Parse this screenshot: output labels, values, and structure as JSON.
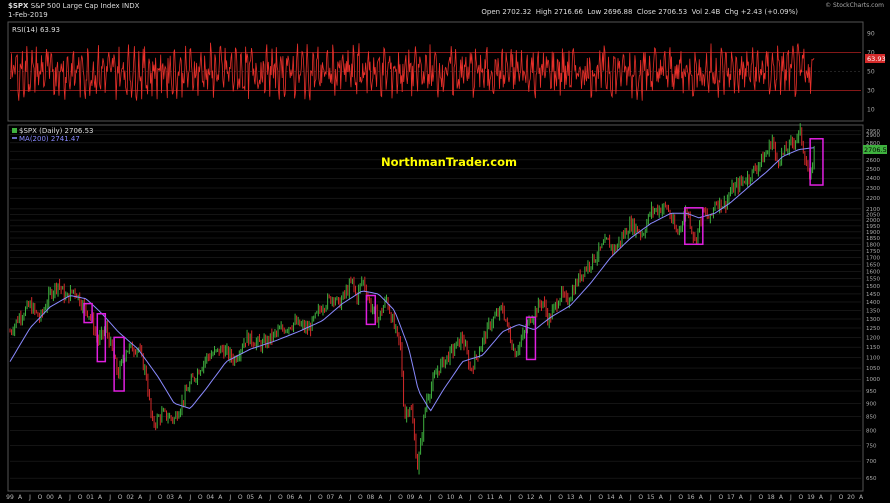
{
  "header": {
    "symbol": "$SPX",
    "name": "S&P 500 Large Cap Index",
    "exchange": "INDX",
    "date": "1-Feb-2019",
    "open_label": "Open",
    "open": "2702.32",
    "high_label": "High",
    "high": "2716.66",
    "low_label": "Low",
    "low": "2696.88",
    "close_label": "Close",
    "close": "2706.53",
    "vol_label": "Vol",
    "vol": "2.4B",
    "chg_label": "Chg",
    "chg": "+2.43 (+0.09%)",
    "credit": "© StockCharts.com"
  },
  "watermark": "NorthmanTrader.com",
  "colors": {
    "background": "#000000",
    "rsi_line": "#e8302a",
    "rsi_bands": "#b02020",
    "price_up": "#3fb13f",
    "price_down": "#d42a2a",
    "ma_line": "#8a8aff",
    "highlight_box": "#e020e0",
    "watermark": "#ffff00",
    "grid": "#2a2a2a"
  },
  "chart_data": [
    {
      "type": "line",
      "title": "RSI(14) 63.93",
      "indicator": "RSI(14)",
      "current_value": 63.93,
      "current_label": "63.93",
      "ylim": [
        0,
        100
      ],
      "yticks": [
        "90",
        "70",
        "50",
        "30",
        "10"
      ],
      "bands": [
        70,
        30
      ],
      "x_range": [
        "1999-01",
        "2019-02"
      ],
      "note_series": "oscillates mostly between about 20 and 85 across the full period"
    },
    {
      "type": "line",
      "title": "$SPX (Daily) 2706.53",
      "legend": [
        {
          "name": "$SPX (Daily) 2706.53",
          "color": "#3fb13f"
        },
        {
          "name": "MA(200) 2741.47",
          "color": "#8a8aff"
        }
      ],
      "price_label": "2706.53",
      "scale": "log",
      "ylim": [
        620,
        3000
      ],
      "yticks": [
        "2950",
        "2900",
        "2800",
        "2700",
        "2600",
        "2500",
        "2400",
        "2300",
        "2200",
        "2100",
        "2050",
        "2000",
        "1950",
        "1900",
        "1850",
        "1800",
        "1750",
        "1700",
        "1650",
        "1600",
        "1550",
        "1500",
        "1450",
        "1400",
        "1350",
        "1300",
        "1250",
        "1200",
        "1150",
        "1100",
        "1050",
        "1000",
        "950",
        "900",
        "850",
        "800",
        "750",
        "700",
        "650"
      ],
      "xticks": [
        "99",
        "A",
        "J",
        "O",
        "00",
        "A",
        "J",
        "O",
        "01",
        "A",
        "J",
        "O",
        "02",
        "A",
        "J",
        "O",
        "03",
        "A",
        "J",
        "O",
        "04",
        "A",
        "J",
        "O",
        "05",
        "A",
        "J",
        "O",
        "06",
        "A",
        "J",
        "O",
        "07",
        "A",
        "J",
        "O",
        "08",
        "A",
        "J",
        "O",
        "09",
        "A",
        "J",
        "O",
        "10",
        "A",
        "J",
        "O",
        "11",
        "A",
        "J",
        "O",
        "12",
        "A",
        "J",
        "O",
        "13",
        "A",
        "J",
        "O",
        "14",
        "A",
        "J",
        "O",
        "15",
        "A",
        "J",
        "O",
        "16",
        "A",
        "J",
        "O",
        "17",
        "A",
        "J",
        "O",
        "18",
        "A",
        "J",
        "O",
        "19",
        "A",
        "J",
        "O",
        "20",
        "A"
      ],
      "x_start": 1999.0,
      "x_end": 2020.25,
      "series": [
        {
          "name": "$SPX (Daily)",
          "points": [
            [
              1999.0,
              1230
            ],
            [
              1999.25,
              1320
            ],
            [
              1999.5,
              1380
            ],
            [
              1999.75,
              1300
            ],
            [
              2000.0,
              1450
            ],
            [
              2000.2,
              1520
            ],
            [
              2000.4,
              1420
            ],
            [
              2000.6,
              1480
            ],
            [
              2000.8,
              1390
            ],
            [
              2001.0,
              1320
            ],
            [
              2001.2,
              1180
            ],
            [
              2001.4,
              1250
            ],
            [
              2001.7,
              1020
            ],
            [
              2001.9,
              1140
            ],
            [
              2002.2,
              1150
            ],
            [
              2002.4,
              1020
            ],
            [
              2002.55,
              820
            ],
            [
              2002.8,
              860
            ],
            [
              2003.1,
              840
            ],
            [
              2003.5,
              980
            ],
            [
              2003.9,
              1100
            ],
            [
              2004.3,
              1140
            ],
            [
              2004.6,
              1090
            ],
            [
              2004.9,
              1200
            ],
            [
              2005.3,
              1160
            ],
            [
              2005.7,
              1230
            ],
            [
              2006.1,
              1280
            ],
            [
              2006.45,
              1240
            ],
            [
              2006.8,
              1380
            ],
            [
              2007.1,
              1440
            ],
            [
              2007.2,
              1380
            ],
            [
              2007.55,
              1530
            ],
            [
              2007.65,
              1420
            ],
            [
              2007.8,
              1550
            ],
            [
              2008.0,
              1380
            ],
            [
              2008.2,
              1300
            ],
            [
              2008.4,
              1420
            ],
            [
              2008.6,
              1250
            ],
            [
              2008.75,
              1150
            ],
            [
              2008.85,
              850
            ],
            [
              2009.0,
              900
            ],
            [
              2009.18,
              680
            ],
            [
              2009.4,
              920
            ],
            [
              2009.7,
              1050
            ],
            [
              2010.0,
              1120
            ],
            [
              2010.3,
              1200
            ],
            [
              2010.5,
              1040
            ],
            [
              2010.8,
              1180
            ],
            [
              2011.0,
              1280
            ],
            [
              2011.3,
              1360
            ],
            [
              2011.6,
              1120
            ],
            [
              2011.8,
              1200
            ],
            [
              2012.0,
              1310
            ],
            [
              2012.3,
              1410
            ],
            [
              2012.45,
              1290
            ],
            [
              2012.75,
              1450
            ],
            [
              2012.9,
              1400
            ],
            [
              2013.3,
              1600
            ],
            [
              2013.6,
              1700
            ],
            [
              2013.9,
              1820
            ],
            [
              2014.1,
              1760
            ],
            [
              2014.5,
              1970
            ],
            [
              2014.8,
              1880
            ],
            [
              2015.0,
              2080
            ],
            [
              2015.4,
              2120
            ],
            [
              2015.65,
              1880
            ],
            [
              2015.9,
              2100
            ],
            [
              2016.1,
              1830
            ],
            [
              2016.3,
              2070
            ],
            [
              2016.5,
              2000
            ],
            [
              2016.6,
              2170
            ],
            [
              2016.85,
              2140
            ],
            [
              2017.0,
              2270
            ],
            [
              2017.5,
              2440
            ],
            [
              2017.9,
              2680
            ],
            [
              2018.05,
              2870
            ],
            [
              2018.12,
              2580
            ],
            [
              2018.4,
              2720
            ],
            [
              2018.73,
              2930
            ],
            [
              2018.98,
              2350
            ],
            [
              2019.08,
              2706.53
            ]
          ]
        },
        {
          "name": "MA(200)",
          "points": [
            [
              1999.0,
              1080
            ],
            [
              1999.5,
              1250
            ],
            [
              2000.0,
              1370
            ],
            [
              2000.5,
              1440
            ],
            [
              2000.9,
              1420
            ],
            [
              2001.3,
              1330
            ],
            [
              2001.7,
              1230
            ],
            [
              2002.2,
              1140
            ],
            [
              2002.7,
              1010
            ],
            [
              2003.1,
              900
            ],
            [
              2003.5,
              880
            ],
            [
              2003.9,
              960
            ],
            [
              2004.4,
              1080
            ],
            [
              2005.0,
              1140
            ],
            [
              2005.6,
              1180
            ],
            [
              2006.2,
              1230
            ],
            [
              2006.8,
              1290
            ],
            [
              2007.3,
              1390
            ],
            [
              2007.8,
              1470
            ],
            [
              2008.2,
              1450
            ],
            [
              2008.6,
              1350
            ],
            [
              2008.95,
              1150
            ],
            [
              2009.2,
              950
            ],
            [
              2009.5,
              870
            ],
            [
              2009.8,
              950
            ],
            [
              2010.3,
              1080
            ],
            [
              2010.8,
              1110
            ],
            [
              2011.3,
              1230
            ],
            [
              2011.7,
              1270
            ],
            [
              2012.1,
              1240
            ],
            [
              2012.5,
              1310
            ],
            [
              2013.0,
              1380
            ],
            [
              2013.5,
              1520
            ],
            [
              2014.0,
              1700
            ],
            [
              2014.5,
              1850
            ],
            [
              2015.0,
              1970
            ],
            [
              2015.5,
              2060
            ],
            [
              2015.9,
              2060
            ],
            [
              2016.2,
              2020
            ],
            [
              2016.6,
              2060
            ],
            [
              2017.0,
              2160
            ],
            [
              2017.5,
              2330
            ],
            [
              2017.9,
              2470
            ],
            [
              2018.3,
              2640
            ],
            [
              2018.7,
              2720
            ],
            [
              2019.08,
              2741.47
            ]
          ]
        }
      ],
      "highlight_boxes": [
        {
          "x0": 2000.85,
          "x1": 2001.05,
          "y0": 1280,
          "y1": 1390
        },
        {
          "x0": 2001.18,
          "x1": 2001.38,
          "y0": 1080,
          "y1": 1330
        },
        {
          "x0": 2001.6,
          "x1": 2001.85,
          "y0": 950,
          "y1": 1200
        },
        {
          "x0": 2007.9,
          "x1": 2008.12,
          "y0": 1270,
          "y1": 1440
        },
        {
          "x0": 2011.9,
          "x1": 2012.12,
          "y0": 1090,
          "y1": 1310
        },
        {
          "x0": 2015.85,
          "x1": 2016.3,
          "y0": 1800,
          "y1": 2110
        },
        {
          "x0": 2018.98,
          "x1": 2019.3,
          "y0": 2330,
          "y1": 2850
        }
      ]
    }
  ]
}
